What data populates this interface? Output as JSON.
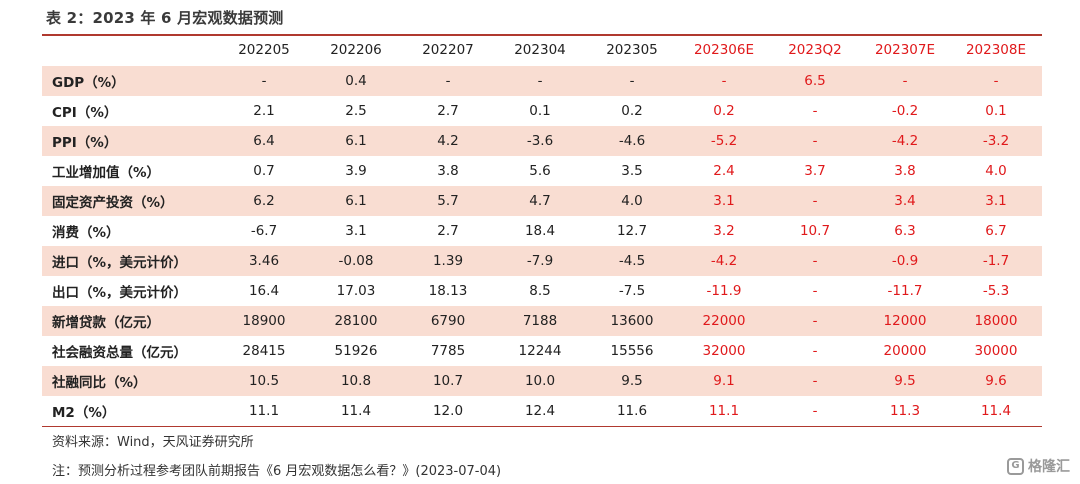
{
  "title": "表 2：2023 年 6 月宏观数据预测",
  "columns": [
    {
      "label": "202205",
      "estimate": false
    },
    {
      "label": "202206",
      "estimate": false
    },
    {
      "label": "202207",
      "estimate": false
    },
    {
      "label": "202304",
      "estimate": false
    },
    {
      "label": "202305",
      "estimate": false
    },
    {
      "label": "202306E",
      "estimate": true
    },
    {
      "label": "2023Q2",
      "estimate": true
    },
    {
      "label": "202307E",
      "estimate": true
    },
    {
      "label": "202308E",
      "estimate": true
    }
  ],
  "rows": [
    {
      "label": "GDP（%）",
      "values": [
        "-",
        "0.4",
        "-",
        "-",
        "-",
        "-",
        "6.5",
        "-",
        "-"
      ]
    },
    {
      "label": "CPI（%）",
      "values": [
        "2.1",
        "2.5",
        "2.7",
        "0.1",
        "0.2",
        "0.2",
        "-",
        "-0.2",
        "0.1"
      ]
    },
    {
      "label": "PPI（%）",
      "values": [
        "6.4",
        "6.1",
        "4.2",
        "-3.6",
        "-4.6",
        "-5.2",
        "-",
        "-4.2",
        "-3.2"
      ]
    },
    {
      "label": "工业增加值（%）",
      "values": [
        "0.7",
        "3.9",
        "3.8",
        "5.6",
        "3.5",
        "2.4",
        "3.7",
        "3.8",
        "4.0"
      ]
    },
    {
      "label": "固定资产投资（%）",
      "values": [
        "6.2",
        "6.1",
        "5.7",
        "4.7",
        "4.0",
        "3.1",
        "-",
        "3.4",
        "3.1"
      ]
    },
    {
      "label": "消费（%）",
      "values": [
        "-6.7",
        "3.1",
        "2.7",
        "18.4",
        "12.7",
        "3.2",
        "10.7",
        "6.3",
        "6.7"
      ]
    },
    {
      "label": "进口（%，美元计价）",
      "values": [
        "3.46",
        "-0.08",
        "1.39",
        "-7.9",
        "-4.5",
        "-4.2",
        "-",
        "-0.9",
        "-1.7"
      ]
    },
    {
      "label": "出口（%，美元计价）",
      "values": [
        "16.4",
        "17.03",
        "18.13",
        "8.5",
        "-7.5",
        "-11.9",
        "-",
        "-11.7",
        "-5.3"
      ]
    },
    {
      "label": "新增贷款（亿元）",
      "values": [
        "18900",
        "28100",
        "6790",
        "7188",
        "13600",
        "22000",
        "-",
        "12000",
        "18000"
      ]
    },
    {
      "label": "社会融资总量（亿元）",
      "values": [
        "28415",
        "51926",
        "7785",
        "12244",
        "15556",
        "32000",
        "-",
        "20000",
        "30000"
      ]
    },
    {
      "label": "社融同比（%）",
      "values": [
        "10.5",
        "10.8",
        "10.7",
        "10.0",
        "9.5",
        "9.1",
        "-",
        "9.5",
        "9.6"
      ]
    },
    {
      "label": "M2（%）",
      "values": [
        "11.1",
        "11.4",
        "12.0",
        "12.4",
        "11.6",
        "11.1",
        "-",
        "11.3",
        "11.4"
      ]
    }
  ],
  "source": "资料来源：Wind，天风证券研究所",
  "note": "注：预测分析过程参考团队前期报告《6 月宏观数据怎么看？》(2023-07-04)",
  "watermark": {
    "icon": "gelonghui-logo-icon",
    "text": "格隆汇"
  },
  "colors": {
    "estimate_text": "#e0191b",
    "row_shade": "#f9ddd2",
    "rule": "#b0392f"
  }
}
